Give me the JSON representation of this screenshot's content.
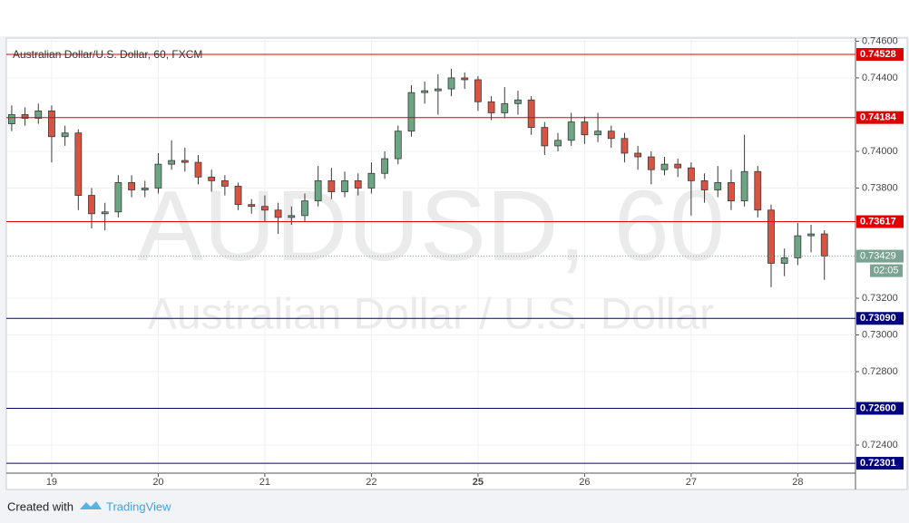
{
  "chart_data": {
    "type": "candlestick",
    "title": "Australian Dollar/U.S. Dollar, 60, FXCM",
    "watermark": "AUDUSD, 60",
    "watermark_subtitle": "Australian Dollar / U.S. Dollar",
    "x": [
      1,
      4,
      7,
      10,
      13,
      16,
      19,
      22,
      25,
      28,
      31,
      34,
      37,
      40,
      43,
      46,
      49,
      52,
      55,
      58,
      61,
      64,
      67,
      70,
      73,
      76,
      79,
      82,
      85,
      88,
      91,
      94,
      97,
      100,
      103,
      106,
      109,
      112,
      115,
      118,
      121,
      124,
      127,
      130,
      133,
      136,
      139,
      142,
      145,
      148,
      151,
      154,
      157,
      160,
      163,
      166,
      169,
      172,
      175,
      178,
      181,
      184
    ],
    "open": [
      0.7415,
      0.742,
      0.7418,
      0.7422,
      0.7408,
      0.741,
      0.7376,
      0.7366,
      0.7367,
      0.7383,
      0.7379,
      0.738,
      0.7393,
      0.7395,
      0.7394,
      0.7386,
      0.7384,
      0.7381,
      0.7371,
      0.737,
      0.7368,
      0.7364,
      0.7365,
      0.7373,
      0.7384,
      0.7378,
      0.7384,
      0.738,
      0.7388,
      0.7396,
      0.7411,
      0.7432,
      0.7433,
      0.7434,
      0.744,
      0.7439,
      0.7427,
      0.7421,
      0.7426,
      0.7428,
      0.7413,
      0.7403,
      0.7406,
      0.7416,
      0.7409,
      0.7411,
      0.7407,
      0.7399,
      0.7397,
      0.739,
      0.7393,
      0.7391,
      0.7384,
      0.7379,
      0.7383,
      0.7373,
      0.7389,
      0.7368,
      0.7339,
      0.7342,
      0.7354,
      0.7355
    ],
    "high": [
      0.7425,
      0.7424,
      0.7426,
      0.7425,
      0.7414,
      0.7412,
      0.738,
      0.7372,
      0.7387,
      0.7387,
      0.7384,
      0.7399,
      0.7406,
      0.7402,
      0.7398,
      0.739,
      0.7387,
      0.7383,
      0.7374,
      0.7376,
      0.7372,
      0.737,
      0.7377,
      0.7392,
      0.7391,
      0.7389,
      0.7388,
      0.7394,
      0.74,
      0.7414,
      0.7436,
      0.7438,
      0.7442,
      0.7445,
      0.7443,
      0.7441,
      0.743,
      0.7435,
      0.7433,
      0.743,
      0.7416,
      0.741,
      0.7421,
      0.7419,
      0.7421,
      0.7414,
      0.741,
      0.7403,
      0.74,
      0.7397,
      0.7396,
      0.7394,
      0.7388,
      0.7392,
      0.739,
      0.7409,
      0.7392,
      0.7371,
      0.7347,
      0.7361,
      0.736,
      0.7357
    ],
    "low": [
      0.7411,
      0.7414,
      0.7415,
      0.7394,
      0.7403,
      0.7368,
      0.7358,
      0.7357,
      0.7364,
      0.7375,
      0.7375,
      0.7377,
      0.739,
      0.7389,
      0.7382,
      0.7378,
      0.7376,
      0.7368,
      0.7366,
      0.7362,
      0.7355,
      0.736,
      0.7362,
      0.737,
      0.7374,
      0.7375,
      0.7376,
      0.7377,
      0.7385,
      0.7393,
      0.7408,
      0.7426,
      0.742,
      0.743,
      0.7434,
      0.7422,
      0.7417,
      0.7418,
      0.742,
      0.7409,
      0.7398,
      0.74,
      0.7403,
      0.7404,
      0.7405,
      0.7402,
      0.7394,
      0.739,
      0.7382,
      0.7387,
      0.7386,
      0.7365,
      0.7372,
      0.7375,
      0.7368,
      0.737,
      0.7364,
      0.7326,
      0.7332,
      0.7338,
      0.7345,
      0.733
    ],
    "close": [
      0.742,
      0.7418,
      0.7422,
      0.7408,
      0.741,
      0.7376,
      0.7366,
      0.7367,
      0.7383,
      0.7379,
      0.738,
      0.7393,
      0.7395,
      0.7394,
      0.7386,
      0.7384,
      0.7381,
      0.7371,
      0.737,
      0.7368,
      0.7364,
      0.7365,
      0.7373,
      0.7384,
      0.7378,
      0.7384,
      0.738,
      0.7388,
      0.7396,
      0.7411,
      0.7432,
      0.7433,
      0.7434,
      0.744,
      0.7439,
      0.7427,
      0.7421,
      0.7426,
      0.7428,
      0.7413,
      0.7403,
      0.7406,
      0.7416,
      0.7409,
      0.7411,
      0.7407,
      0.7399,
      0.7397,
      0.739,
      0.7393,
      0.7391,
      0.7384,
      0.7379,
      0.7383,
      0.7373,
      0.7389,
      0.7368,
      0.7339,
      0.7342,
      0.7354,
      0.7355,
      0.73429
    ],
    "up_color": "#6ba583",
    "down_color": "#d75442",
    "xlim": [
      0,
      191
    ],
    "xticks": [
      {
        "value": 10,
        "label": "19"
      },
      {
        "value": 34,
        "label": "20"
      },
      {
        "value": 58,
        "label": "21"
      },
      {
        "value": 82,
        "label": "22"
      },
      {
        "value": 106,
        "label": "25",
        "bold": true
      },
      {
        "value": 130,
        "label": "26"
      },
      {
        "value": 154,
        "label": "27"
      },
      {
        "value": 178,
        "label": "28"
      }
    ],
    "ylim": [
      0.72247,
      0.74617
    ],
    "yticks": [
      {
        "value": 0.746,
        "label": "0.74600"
      },
      {
        "value": 0.744,
        "label": "0.74400"
      },
      {
        "value": 0.74,
        "label": "0.74000"
      },
      {
        "value": 0.738,
        "label": "0.73800"
      },
      {
        "value": 0.732,
        "label": "0.73200"
      },
      {
        "value": 0.73,
        "label": "0.73000"
      },
      {
        "value": 0.728,
        "label": "0.72800"
      },
      {
        "value": 0.724,
        "label": "0.72400"
      }
    ],
    "grid": true,
    "levels": [
      {
        "value": 0.74528,
        "color": "#e00000"
      },
      {
        "value": 0.74184,
        "color": "#e00000"
      },
      {
        "value": 0.73617,
        "color": "#e00000"
      },
      {
        "value": {
          "value": 0.7309,
          "label": "0.73090"
        },
        "color": "#00007f"
      },
      {
        "value": {
          "value": 0.726,
          "label": "0.72600"
        },
        "color": "#00007f"
      },
      {
        "value": 0.72301,
        "color": "#00007f"
      }
    ],
    "last_price": {
      "value": 0.73429,
      "countdown": "02:05",
      "color": "#7ba393"
    }
  },
  "footer": {
    "prefix": "Created with",
    "brand": "TradingView"
  }
}
